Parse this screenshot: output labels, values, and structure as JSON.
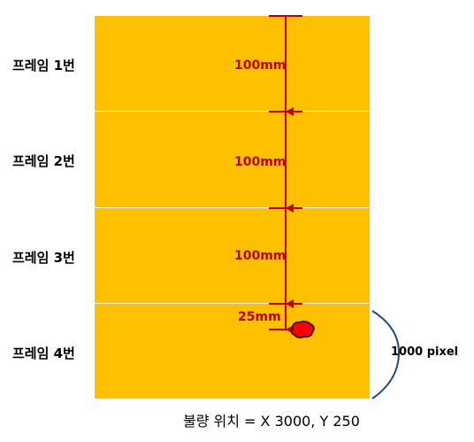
{
  "frames": [
    {
      "label": "프레임 1번"
    },
    {
      "label": "프레임 2번"
    },
    {
      "label": "프레임 3번"
    },
    {
      "label": "프레임 4번"
    }
  ],
  "measurements": [
    {
      "label": "100mm"
    },
    {
      "label": "100mm"
    },
    {
      "label": "100mm"
    },
    {
      "label": "25mm"
    }
  ],
  "frame_height_label": "1000 pixel",
  "defect_caption": "불량 위치 = X 3000, Y 250",
  "colors": {
    "frame_fill": "#FFC000",
    "arrow": "#C00000",
    "defect_fill": "#FF0000",
    "brace": "#1F4E79"
  }
}
